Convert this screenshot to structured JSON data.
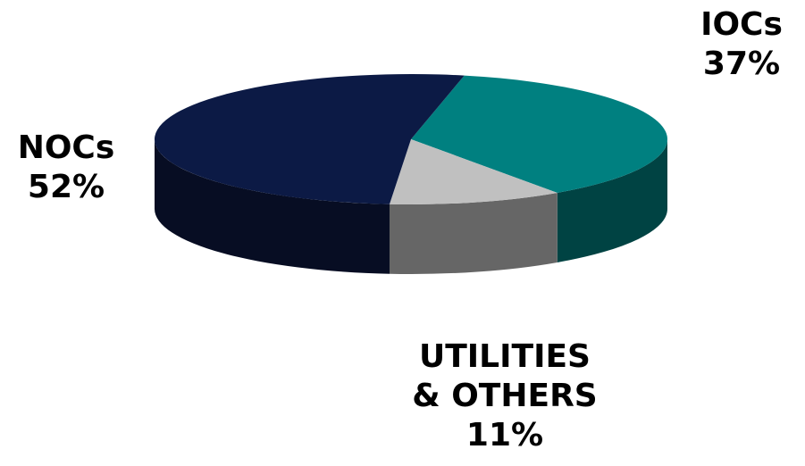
{
  "chart_data": {
    "type": "pie",
    "title": "",
    "slices": [
      {
        "label": "NOCs",
        "value": 52,
        "value_label": "52%",
        "color": "#0c1a45",
        "side_color": "#070d23"
      },
      {
        "label": "IOCs",
        "value": 37,
        "value_label": "37%",
        "color": "#008080",
        "side_color": "#004343"
      },
      {
        "label_lines": [
          "UTILITIES",
          "& OTHERS"
        ],
        "value": 11,
        "value_label": "11%",
        "color": "#c0c0c0",
        "side_color": "#666666"
      }
    ],
    "legend": "none",
    "style": "3d-tilted"
  }
}
